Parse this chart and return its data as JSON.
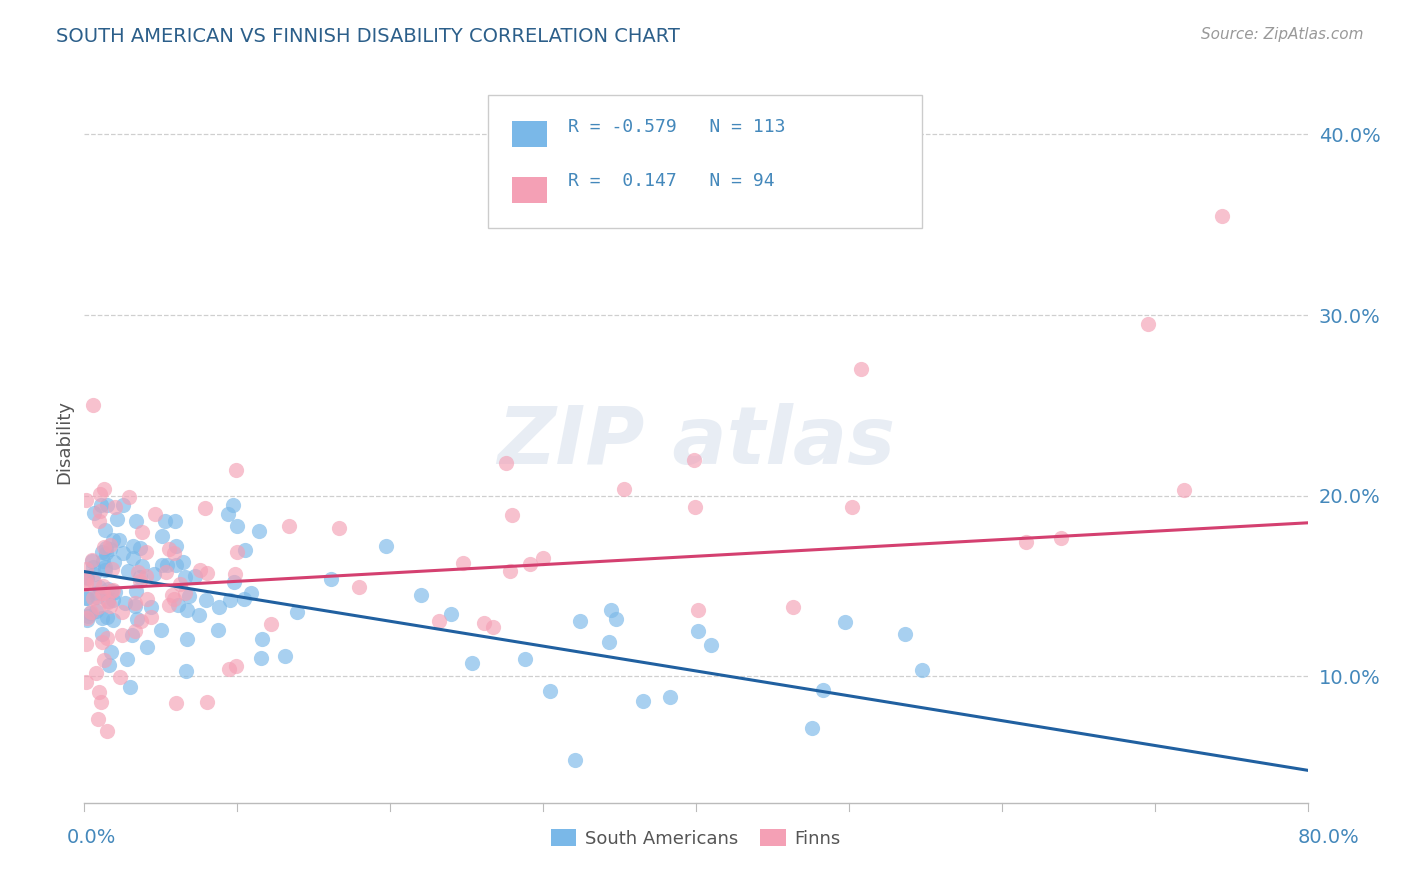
{
  "title": "SOUTH AMERICAN VS FINNISH DISABILITY CORRELATION CHART",
  "source": "Source: ZipAtlas.com",
  "ylabel": "Disability",
  "xlim": [
    0.0,
    0.8
  ],
  "ylim": [
    0.03,
    0.43
  ],
  "yticks": [
    0.1,
    0.2,
    0.3,
    0.4
  ],
  "legend_label1": "South Americans",
  "legend_label2": "Finns",
  "blue_color": "#7ab8e8",
  "pink_color": "#f4a0b5",
  "blue_line_color": "#2060a0",
  "pink_line_color": "#d44070",
  "title_color": "#2c5f8a",
  "axis_label_color": "#4488bb",
  "tick_label_color": "#4488bb",
  "background_color": "#ffffff",
  "grid_color": "#bbbbbb",
  "legend_R1": "-0.579",
  "legend_N1": "113",
  "legend_R2": "0.147",
  "legend_N2": "94",
  "sa_line_x0": 0.0,
  "sa_line_y0": 0.158,
  "sa_line_x1": 0.8,
  "sa_line_y1": 0.048,
  "fi_line_x0": 0.0,
  "fi_line_y0": 0.148,
  "fi_line_x1": 0.8,
  "fi_line_y1": 0.185
}
